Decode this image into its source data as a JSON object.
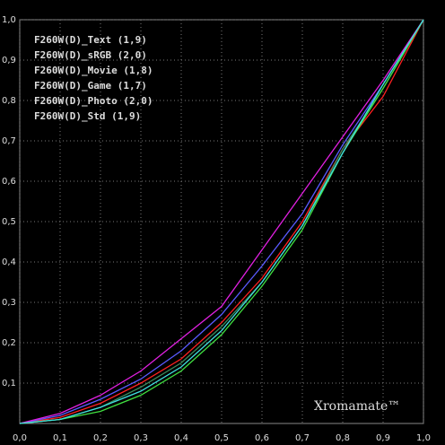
{
  "chart_data": {
    "type": "line",
    "annotation": "Xromamate™",
    "x": [
      0,
      0.1,
      0.2,
      0.3,
      0.4,
      0.5,
      0.6,
      0.7,
      0.8,
      0.9,
      1.0
    ],
    "series": [
      {
        "name": "F260W(D)_Text (1,9)",
        "color": "#ff2020",
        "values": [
          0,
          0.015,
          0.05,
          0.1,
          0.16,
          0.25,
          0.36,
          0.5,
          0.68,
          0.81,
          1.0
        ]
      },
      {
        "name": "F260W(D)_sRGB (2,0)",
        "color": "#3a8a5a",
        "values": [
          0,
          0.01,
          0.04,
          0.09,
          0.15,
          0.24,
          0.35,
          0.49,
          0.68,
          0.83,
          1.0
        ]
      },
      {
        "name": "F260W(D)_Movie (1,8)",
        "color": "#5a5aff",
        "values": [
          0,
          0.02,
          0.06,
          0.11,
          0.18,
          0.27,
          0.39,
          0.52,
          0.69,
          0.84,
          1.0
        ]
      },
      {
        "name": "F260W(D)_Game (1,7)",
        "color": "#e020e0",
        "values": [
          0,
          0.025,
          0.07,
          0.13,
          0.21,
          0.29,
          0.43,
          0.57,
          0.71,
          0.85,
          1.0
        ]
      },
      {
        "name": "F260W(D)_Photo (2,0)",
        "color": "#40e040",
        "values": [
          0,
          0.01,
          0.03,
          0.07,
          0.13,
          0.22,
          0.34,
          0.48,
          0.67,
          0.83,
          1.0
        ]
      },
      {
        "name": "F260W(D)_Std (1,9)",
        "color": "#40e0e0",
        "values": [
          0,
          0.01,
          0.04,
          0.08,
          0.14,
          0.23,
          0.35,
          0.49,
          0.67,
          0.84,
          1.0
        ]
      }
    ],
    "xlim": [
      0,
      1
    ],
    "ylim": [
      0,
      1
    ],
    "xticks": [
      {
        "value": 0,
        "label": "0,0"
      },
      {
        "value": 0.1,
        "label": "0,1"
      },
      {
        "value": 0.2,
        "label": "0,2"
      },
      {
        "value": 0.3,
        "label": "0,3"
      },
      {
        "value": 0.4,
        "label": "0,4"
      },
      {
        "value": 0.5,
        "label": "0,5"
      },
      {
        "value": 0.6,
        "label": "0,6"
      },
      {
        "value": 0.7,
        "label": "0,7"
      },
      {
        "value": 0.8,
        "label": "0,8"
      },
      {
        "value": 0.9,
        "label": "0,9"
      },
      {
        "value": 1.0,
        "label": "1,0"
      }
    ],
    "yticks": [
      {
        "value": 0.1,
        "label": "0,1"
      },
      {
        "value": 0.2,
        "label": "0,2"
      },
      {
        "value": 0.3,
        "label": "0,3"
      },
      {
        "value": 0.4,
        "label": "0,4"
      },
      {
        "value": 0.5,
        "label": "0,5"
      },
      {
        "value": 0.6,
        "label": "0,6"
      },
      {
        "value": 0.7,
        "label": "0,7"
      },
      {
        "value": 0.8,
        "label": "0,8"
      },
      {
        "value": 0.9,
        "label": "0,9"
      },
      {
        "value": 1.0,
        "label": "1,0"
      }
    ],
    "grid": true
  }
}
